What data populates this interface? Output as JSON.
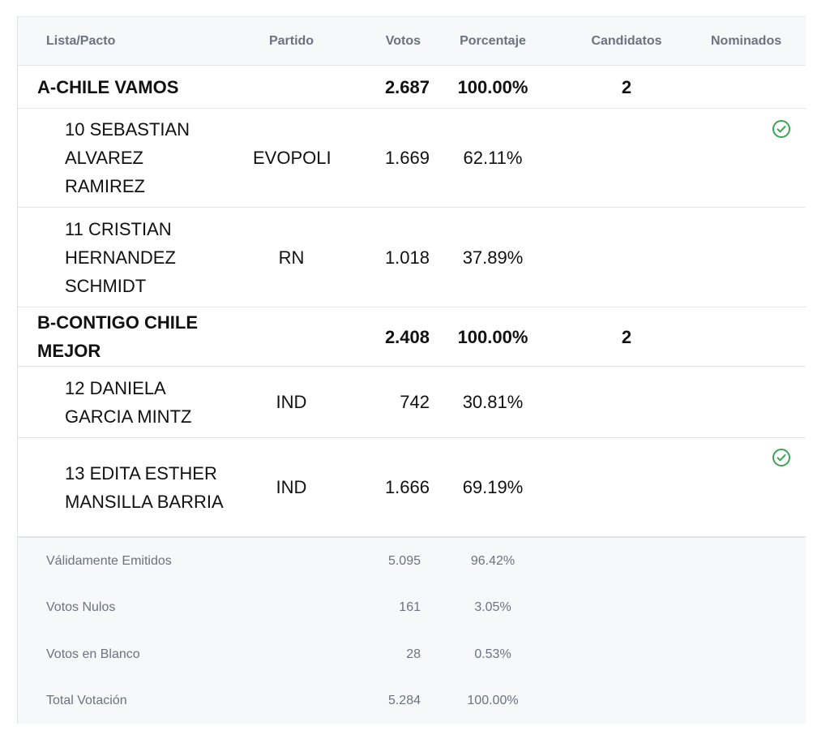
{
  "table": {
    "columns": [
      "Lista/Pacto",
      "Partido",
      "Votos",
      "Porcentaje",
      "Candidatos",
      "Nominados"
    ],
    "groups": [
      {
        "pact": {
          "name": "A-CHILE VAMOS",
          "votes": "2.687",
          "percent": "100.00%",
          "candidates": "2"
        },
        "candidates": [
          {
            "name": "10 SEBASTIAN ALVAREZ RAMIREZ",
            "party": "EVOPOLI",
            "votes": "1.669",
            "percent": "62.11%",
            "nominated": true
          },
          {
            "name": "11 CRISTIAN HERNANDEZ SCHMIDT",
            "party": "RN",
            "votes": "1.018",
            "percent": "37.89%",
            "nominated": false
          }
        ]
      },
      {
        "pact": {
          "name": "B-CONTIGO CHILE MEJOR",
          "votes": "2.408",
          "percent": "100.00%",
          "candidates": "2"
        },
        "candidates": [
          {
            "name": "12 DANIELA GARCIA MINTZ",
            "party": "IND",
            "votes": "742",
            "percent": "30.81%",
            "nominated": false
          },
          {
            "name": "13 EDITA ESTHER MANSILLA BARRIA",
            "party": "IND",
            "votes": "1.666",
            "percent": "69.19%",
            "nominated": true
          }
        ]
      }
    ],
    "summary": [
      {
        "label": "Válidamente Emitidos",
        "votes": "5.095",
        "percent": "96.42%"
      },
      {
        "label": "Votos Nulos",
        "votes": "161",
        "percent": "3.05%"
      },
      {
        "label": "Votos en Blanco",
        "votes": "28",
        "percent": "0.53%"
      },
      {
        "label": "Total Votación",
        "votes": "5.284",
        "percent": "100.00%"
      }
    ]
  },
  "colors": {
    "check": "#3aa655",
    "header_bg": "#f7f8fa",
    "header_text": "#6b7280"
  },
  "icons": {
    "nominated": "check-circle-icon"
  }
}
